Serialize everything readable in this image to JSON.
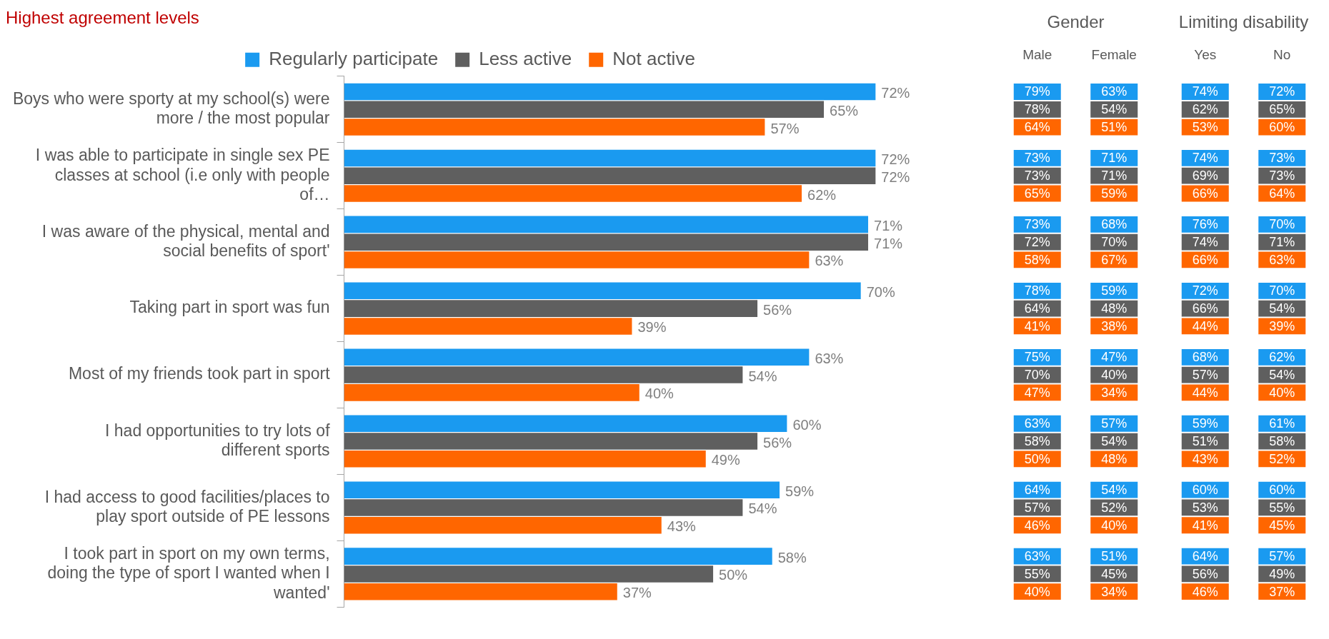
{
  "chart_data": [
    {
      "type": "bar",
      "title": "Highest agreement levels",
      "orientation": "horizontal",
      "categories": [
        "Boys who were sporty at my school(s) were more / the most popular",
        "I was able to participate in single sex PE classes at school (i.e only with people of…",
        "I was aware of the physical, mental and social benefits of sport'",
        "Taking part in sport was fun",
        "Most of my friends took part in sport",
        "I had opportunities to try lots of different sports",
        "I had access to good facilities/places to play sport outside of PE lessons",
        "I took part in sport on my own terms, doing the type of sport I wanted when I wanted'"
      ],
      "series": [
        {
          "name": "Regularly participate",
          "color": "#1a9af0",
          "values": [
            72,
            72,
            71,
            70,
            63,
            60,
            59,
            58
          ],
          "value_labels": [
            "72%",
            "72%",
            "71%",
            "70%",
            "63%",
            "60%",
            "59%",
            "58%"
          ]
        },
        {
          "name": "Less active",
          "color": "#5f5f5f",
          "values": [
            65,
            72,
            71,
            56,
            54,
            56,
            54,
            50
          ],
          "value_labels": [
            "65%",
            "72%",
            "71%",
            "56%",
            "54%",
            "56%",
            "54%",
            "50%"
          ]
        },
        {
          "name": "Not active",
          "color": "#ff6600",
          "values": [
            57,
            62,
            63,
            39,
            40,
            49,
            43,
            37
          ],
          "value_labels": [
            "57%",
            "62%",
            "63%",
            "39%",
            "40%",
            "49%",
            "43%",
            "37%"
          ]
        }
      ],
      "tick_labels": "y",
      "legend": "top"
    },
    {
      "type": "heatmap",
      "title": "Gender",
      "categories": [
        "Male",
        "Female"
      ],
      "y_categories": [
        null,
        null,
        null,
        null,
        null,
        null,
        null,
        null,
        null,
        null,
        null,
        null,
        null,
        null,
        null,
        null,
        null,
        null,
        null,
        null,
        null,
        null,
        null,
        null
      ],
      "cells": [
        [
          79,
          63
        ],
        [
          78,
          54
        ],
        [
          64,
          51
        ],
        [
          73,
          71
        ],
        [
          73,
          71
        ],
        [
          65,
          59
        ],
        [
          73,
          68
        ],
        [
          72,
          70
        ],
        [
          58,
          67
        ],
        [
          78,
          59
        ],
        [
          64,
          48
        ],
        [
          41,
          38
        ],
        [
          75,
          47
        ],
        [
          70,
          40
        ],
        [
          47,
          34
        ],
        [
          63,
          57
        ],
        [
          58,
          54
        ],
        [
          50,
          48
        ],
        [
          64,
          54
        ],
        [
          57,
          52
        ],
        [
          46,
          40
        ],
        [
          63,
          51
        ],
        [
          55,
          45
        ],
        [
          40,
          34
        ]
      ],
      "cell_labels": [
        [
          "79%",
          "63%"
        ],
        [
          "78%",
          "54%"
        ],
        [
          "64%",
          "51%"
        ],
        [
          "73%",
          "71%"
        ],
        [
          "73%",
          "71%"
        ],
        [
          "65%",
          "59%"
        ],
        [
          "73%",
          "68%"
        ],
        [
          "72%",
          "70%"
        ],
        [
          "58%",
          "67%"
        ],
        [
          "78%",
          "59%"
        ],
        [
          "64%",
          "48%"
        ],
        [
          "41%",
          "38%"
        ],
        [
          "75%",
          "47%"
        ],
        [
          "70%",
          "40%"
        ],
        [
          "47%",
          "34%"
        ],
        [
          "63%",
          "57%"
        ],
        [
          "58%",
          "54%"
        ],
        [
          "50%",
          "48%"
        ],
        [
          "64%",
          "54%"
        ],
        [
          "57%",
          "52%"
        ],
        [
          "46%",
          "40%"
        ],
        [
          "63%",
          "51%"
        ],
        [
          "55%",
          "45%"
        ],
        [
          "40%",
          "34%"
        ]
      ],
      "colors": [
        "#1a9af0",
        "#5f5f5f",
        "#ff6600",
        "#1a9af0",
        "#5f5f5f",
        "#ff6600",
        "#1a9af0",
        "#5f5f5f",
        "#ff6600",
        "#1a9af0",
        "#5f5f5f",
        "#ff6600",
        "#1a9af0",
        "#5f5f5f",
        "#ff6600",
        "#1a9af0",
        "#5f5f5f",
        "#ff6600",
        "#1a9af0",
        "#5f5f5f",
        "#ff6600",
        "#1a9af0",
        "#5f5f5f",
        "#ff6600"
      ]
    },
    {
      "type": "heatmap",
      "title": "Limiting disability",
      "categories": [
        "Yes",
        "No"
      ],
      "y_categories": [
        null,
        null,
        null,
        null,
        null,
        null,
        null,
        null,
        null,
        null,
        null,
        null,
        null,
        null,
        null,
        null,
        null,
        null,
        null,
        null,
        null,
        null,
        null,
        null
      ],
      "cells": [
        [
          74,
          72
        ],
        [
          62,
          65
        ],
        [
          53,
          60
        ],
        [
          74,
          73
        ],
        [
          69,
          73
        ],
        [
          66,
          64
        ],
        [
          76,
          70
        ],
        [
          74,
          71
        ],
        [
          66,
          63
        ],
        [
          72,
          70
        ],
        [
          66,
          54
        ],
        [
          44,
          39
        ],
        [
          68,
          62
        ],
        [
          57,
          54
        ],
        [
          44,
          40
        ],
        [
          59,
          61
        ],
        [
          51,
          58
        ],
        [
          43,
          52
        ],
        [
          60,
          60
        ],
        [
          53,
          55
        ],
        [
          41,
          45
        ],
        [
          64,
          57
        ],
        [
          56,
          49
        ],
        [
          46,
          37
        ]
      ],
      "cell_labels": [
        [
          "74%",
          "72%"
        ],
        [
          "62%",
          "65%"
        ],
        [
          "53%",
          "60%"
        ],
        [
          "74%",
          "73%"
        ],
        [
          "69%",
          "73%"
        ],
        [
          "66%",
          "64%"
        ],
        [
          "76%",
          "70%"
        ],
        [
          "74%",
          "71%"
        ],
        [
          "66%",
          "63%"
        ],
        [
          "72%",
          "70%"
        ],
        [
          "66%",
          "54%"
        ],
        [
          "44%",
          "39%"
        ],
        [
          "68%",
          "62%"
        ],
        [
          "57%",
          "54%"
        ],
        [
          "44%",
          "40%"
        ],
        [
          "59%",
          "61%"
        ],
        [
          "51%",
          "58%"
        ],
        [
          "43%",
          "52%"
        ],
        [
          "60%",
          "60%"
        ],
        [
          "53%",
          "55%"
        ],
        [
          "41%",
          "45%"
        ],
        [
          "64%",
          "57%"
        ],
        [
          "56%",
          "49%"
        ],
        [
          "46%",
          "37%"
        ]
      ],
      "colors": [
        "#1a9af0",
        "#5f5f5f",
        "#ff6600",
        "#1a9af0",
        "#5f5f5f",
        "#ff6600",
        "#1a9af0",
        "#5f5f5f",
        "#ff6600",
        "#1a9af0",
        "#5f5f5f",
        "#ff6600",
        "#1a9af0",
        "#5f5f5f",
        "#ff6600",
        "#1a9af0",
        "#5f5f5f",
        "#ff6600",
        "#1a9af0",
        "#5f5f5f",
        "#ff6600",
        "#1a9af0",
        "#5f5f5f",
        "#ff6600"
      ]
    }
  ]
}
